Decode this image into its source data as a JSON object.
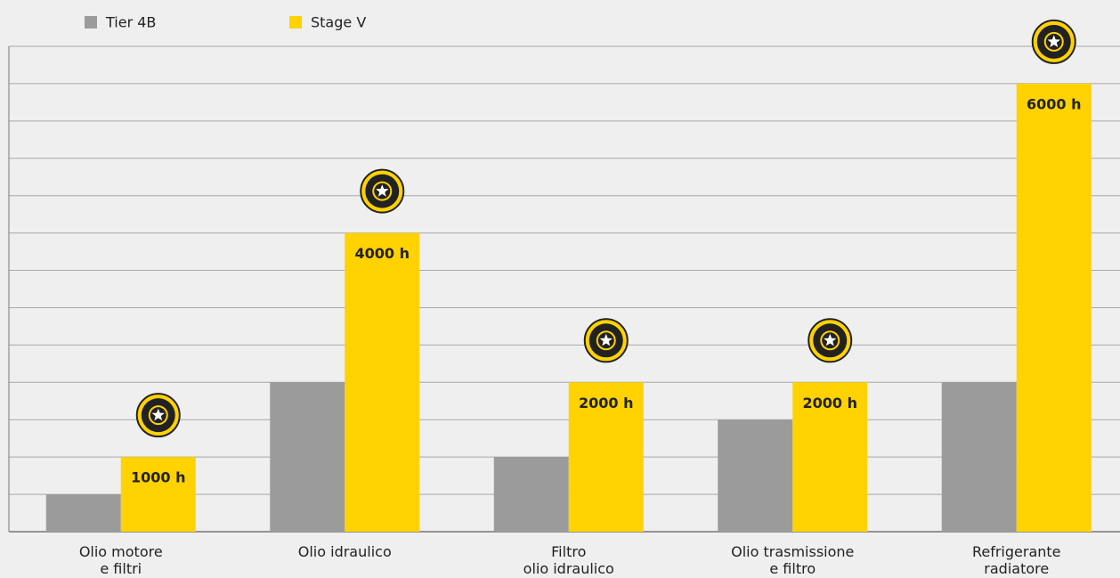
{
  "chart_data": {
    "type": "bar",
    "categories": [
      "Olio motore\ne filtri",
      "Olio idraulico",
      "Filtro\nolio idraulico",
      "Olio trasmissione\ne filtro",
      "Refrigerante\nradiatore"
    ],
    "series": [
      {
        "name": "Tier 4B",
        "color": "#9b9b9b",
        "values": [
          500,
          2000,
          1000,
          1500,
          2000
        ]
      },
      {
        "name": "Stage V",
        "color": "#ffd200",
        "values": [
          1000,
          4000,
          2000,
          2000,
          6000
        ],
        "value_labels": [
          "1000 h",
          "4000 h",
          "2000 h",
          "2000 h",
          "6000 h"
        ]
      }
    ],
    "badge": "BEST IN CLASS",
    "ylim": [
      0,
      6500
    ],
    "yticks": [
      0,
      500,
      1000,
      1500,
      2000,
      2500,
      3000,
      3500,
      4000,
      4500,
      5000,
      5500,
      6000,
      6500
    ],
    "grid": true
  }
}
